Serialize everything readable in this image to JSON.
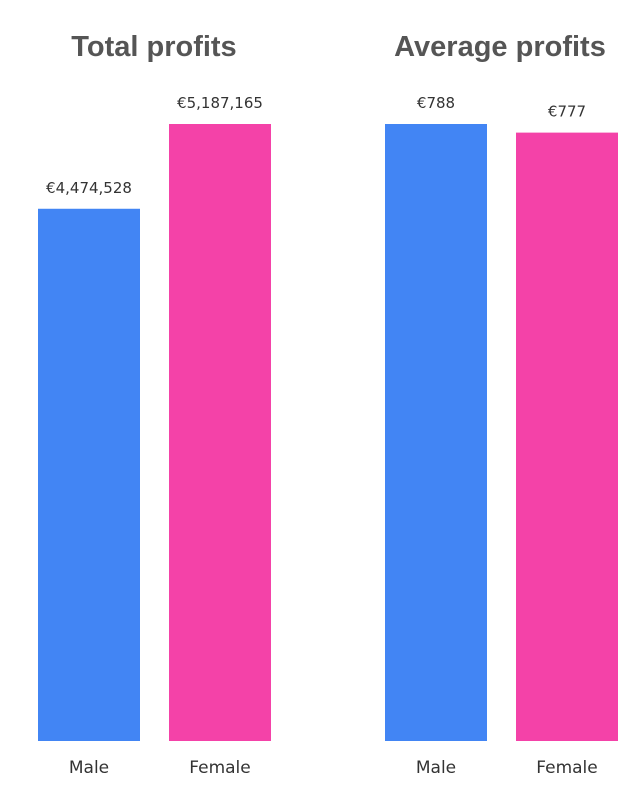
{
  "chart_data": [
    {
      "type": "bar",
      "title": "Total profits",
      "categories": [
        "Male",
        "Female"
      ],
      "values": [
        4474528,
        5187165
      ],
      "data_labels": [
        "€4,474,528",
        "€5,187,165"
      ],
      "colors": [
        "#4285f4",
        "#f442a8"
      ],
      "xlabel": "",
      "ylabel": "",
      "ylim": [
        0,
        5187165
      ],
      "grid": false,
      "legend": "none"
    },
    {
      "type": "bar",
      "title": "Average profits",
      "categories": [
        "Male",
        "Female"
      ],
      "values": [
        788,
        777
      ],
      "data_labels": [
        "€788",
        "€777"
      ],
      "colors": [
        "#4285f4",
        "#f442a8"
      ],
      "xlabel": "",
      "ylabel": "",
      "ylim": [
        0,
        788
      ],
      "grid": false,
      "legend": "none"
    }
  ],
  "colors": {
    "title": "#555555",
    "labels": "#333333",
    "background": "#ffffff"
  }
}
